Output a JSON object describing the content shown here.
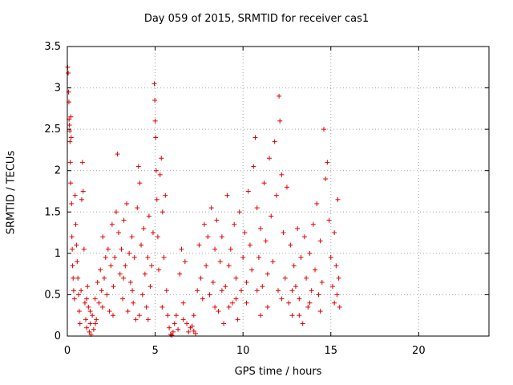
{
  "chart_data": {
    "type": "scatter",
    "title": "Day 059 of 2015, SRMTID for receiver cas1",
    "xlabel": "GPS time / hours",
    "ylabel": "SRMTID / TECUs",
    "xlim": [
      0,
      24
    ],
    "ylim": [
      0,
      3.5
    ],
    "xticks": [
      0,
      5,
      10,
      15,
      20
    ],
    "yticks": [
      0,
      0.5,
      1,
      1.5,
      2,
      2.5,
      3,
      3.5
    ],
    "grid": true,
    "marker": "+",
    "color": "#e00000",
    "series": [
      {
        "points": [
          [
            0.02,
            3.25
          ],
          [
            0.05,
            3.18
          ],
          [
            0.07,
            2.95
          ],
          [
            0.09,
            2.83
          ],
          [
            0.1,
            2.62
          ],
          [
            0.12,
            2.55
          ],
          [
            0.14,
            2.48
          ],
          [
            0.15,
            2.35
          ],
          [
            0.17,
            2.1
          ],
          [
            0.19,
            1.85
          ],
          [
            0.2,
            2.65
          ],
          [
            0.22,
            2.4
          ],
          [
            0.24,
            1.6
          ],
          [
            0.26,
            1.2
          ],
          [
            0.28,
            1.05
          ],
          [
            0.3,
            0.85
          ],
          [
            0.33,
            0.7
          ],
          [
            0.36,
            0.55
          ],
          [
            0.4,
            0.45
          ],
          [
            0.44,
            1.7
          ],
          [
            0.48,
            1.35
          ],
          [
            0.52,
            1.1
          ],
          [
            0.56,
            0.9
          ],
          [
            0.6,
            0.7
          ],
          [
            0.64,
            0.5
          ],
          [
            0.68,
            0.3
          ],
          [
            0.72,
            0.15
          ],
          [
            0.78,
            0.55
          ],
          [
            0.82,
            1.65
          ],
          [
            0.86,
            2.1
          ],
          [
            0.9,
            1.75
          ],
          [
            0.95,
            1.05
          ],
          [
            1.0,
            0.4
          ],
          [
            1.05,
            0.2
          ],
          [
            1.1,
            0.1
          ],
          [
            1.15,
            0.6
          ],
          [
            1.2,
            0.35
          ],
          [
            1.25,
            0.05
          ],
          [
            1.3,
            0.15
          ],
          [
            1.35,
            0.02
          ],
          [
            1.42,
            0.25
          ],
          [
            1.5,
            0.08
          ],
          [
            1.58,
            0.45
          ],
          [
            1.65,
            0.2
          ],
          [
            1.72,
            0.65
          ],
          [
            1.8,
            0.4
          ],
          [
            1.88,
            0.8
          ],
          [
            1.95,
            0.55
          ],
          [
            2.02,
            1.2
          ],
          [
            2.1,
            0.7
          ],
          [
            2.18,
            0.95
          ],
          [
            2.25,
            0.5
          ],
          [
            2.32,
            1.05
          ],
          [
            2.4,
            0.3
          ],
          [
            2.48,
            0.85
          ],
          [
            2.55,
            1.35
          ],
          [
            2.62,
            0.6
          ],
          [
            2.7,
            0.95
          ],
          [
            2.78,
            1.5
          ],
          [
            2.85,
            2.2
          ],
          [
            2.92,
            1.25
          ],
          [
            3.0,
            0.75
          ],
          [
            3.08,
            1.05
          ],
          [
            3.15,
            0.45
          ],
          [
            3.22,
            1.4
          ],
          [
            3.3,
            0.85
          ],
          [
            3.38,
            1.6
          ],
          [
            3.45,
            0.3
          ],
          [
            3.52,
            1.0
          ],
          [
            3.6,
            0.65
          ],
          [
            3.68,
            1.2
          ],
          [
            3.75,
            0.4
          ],
          [
            3.82,
            0.95
          ],
          [
            3.9,
            0.2
          ],
          [
            3.98,
            1.55
          ],
          [
            4.05,
            2.05
          ],
          [
            4.12,
            1.85
          ],
          [
            4.2,
            1.1
          ],
          [
            4.28,
            0.5
          ],
          [
            4.35,
            1.3
          ],
          [
            4.42,
            0.75
          ],
          [
            4.5,
            0.35
          ],
          [
            4.58,
            0.95
          ],
          [
            4.65,
            1.45
          ],
          [
            4.72,
            0.6
          ],
          [
            4.8,
            0.85
          ],
          [
            4.88,
            1.25
          ],
          [
            4.95,
            3.05
          ],
          [
            4.98,
            2.85
          ],
          [
            5.0,
            2.6
          ],
          [
            5.03,
            2.4
          ],
          [
            5.06,
            2.0
          ],
          [
            5.1,
            1.65
          ],
          [
            5.15,
            1.2
          ],
          [
            5.2,
            0.8
          ],
          [
            5.28,
            1.95
          ],
          [
            5.35,
            2.15
          ],
          [
            5.42,
            1.5
          ],
          [
            5.5,
            0.95
          ],
          [
            5.58,
            1.7
          ],
          [
            5.65,
            0.55
          ],
          [
            5.72,
            0.25
          ],
          [
            5.8,
            0.1
          ],
          [
            5.88,
            0.02
          ],
          [
            5.95,
            0.01
          ],
          [
            6.02,
            0.05
          ],
          [
            6.1,
            0.15
          ],
          [
            6.2,
            0.25
          ],
          [
            6.3,
            0.08
          ],
          [
            6.4,
            0.75
          ],
          [
            6.5,
            1.05
          ],
          [
            6.6,
            0.4
          ],
          [
            6.7,
            0.9
          ],
          [
            6.8,
            0.15
          ],
          [
            6.9,
            0.05
          ],
          [
            7.0,
            0.1
          ],
          [
            7.1,
            0.12
          ],
          [
            7.2,
            0.06
          ],
          [
            7.3,
            0.03
          ],
          [
            7.4,
            0.55
          ],
          [
            7.5,
            1.1
          ],
          [
            7.6,
            0.7
          ],
          [
            7.7,
            0.45
          ],
          [
            7.8,
            1.35
          ],
          [
            7.9,
            0.85
          ],
          [
            8.0,
            1.2
          ],
          [
            8.1,
            0.5
          ],
          [
            8.2,
            1.55
          ],
          [
            8.3,
            0.65
          ],
          [
            8.4,
            1.05
          ],
          [
            8.5,
            1.4
          ],
          [
            8.6,
            0.3
          ],
          [
            8.7,
            0.9
          ],
          [
            8.8,
            1.2
          ],
          [
            8.9,
            0.15
          ],
          [
            9.0,
            0.6
          ],
          [
            9.1,
            1.7
          ],
          [
            9.2,
            0.85
          ],
          [
            9.3,
            1.05
          ],
          [
            9.4,
            0.4
          ],
          [
            9.5,
            1.35
          ],
          [
            9.6,
            0.7
          ],
          [
            9.7,
            0.2
          ],
          [
            9.8,
            1.5
          ],
          [
            9.9,
            0.55
          ],
          [
            10.0,
            0.95
          ],
          [
            10.1,
            1.25
          ],
          [
            10.2,
            0.65
          ],
          [
            10.3,
            1.75
          ],
          [
            10.4,
            1.1
          ],
          [
            10.5,
            0.8
          ],
          [
            10.6,
            2.05
          ],
          [
            10.7,
            2.4
          ],
          [
            10.8,
            1.55
          ],
          [
            10.9,
            0.95
          ],
          [
            11.0,
            1.3
          ],
          [
            11.1,
            0.6
          ],
          [
            11.2,
            1.85
          ],
          [
            11.3,
            1.15
          ],
          [
            11.4,
            0.75
          ],
          [
            11.5,
            2.15
          ],
          [
            11.6,
            1.45
          ],
          [
            11.7,
            0.9
          ],
          [
            11.8,
            2.35
          ],
          [
            11.9,
            1.7
          ],
          [
            12.0,
            0.55
          ],
          [
            12.05,
            2.9
          ],
          [
            12.1,
            2.6
          ],
          [
            12.2,
            1.95
          ],
          [
            12.3,
            1.25
          ],
          [
            12.4,
            0.7
          ],
          [
            12.5,
            1.8
          ],
          [
            12.6,
            0.4
          ],
          [
            12.7,
            1.1
          ],
          [
            12.8,
            0.25
          ],
          [
            12.9,
            0.85
          ],
          [
            13.0,
            0.6
          ],
          [
            13.1,
            1.3
          ],
          [
            13.2,
            0.45
          ],
          [
            13.3,
            0.95
          ],
          [
            13.4,
            0.15
          ],
          [
            13.5,
            1.2
          ],
          [
            13.6,
            0.7
          ],
          [
            13.7,
            0.35
          ],
          [
            13.8,
            1.0
          ],
          [
            13.9,
            0.55
          ],
          [
            14.0,
            1.35
          ],
          [
            14.1,
            0.8
          ],
          [
            14.2,
            1.6
          ],
          [
            14.3,
            0.5
          ],
          [
            14.4,
            1.15
          ],
          [
            14.5,
            0.65
          ],
          [
            14.6,
            2.5
          ],
          [
            14.7,
            1.9
          ],
          [
            14.8,
            2.1
          ],
          [
            14.9,
            1.4
          ],
          [
            15.0,
            0.95
          ],
          [
            15.1,
            0.6
          ],
          [
            15.2,
            1.25
          ],
          [
            15.3,
            0.85
          ],
          [
            15.35,
            0.5
          ],
          [
            15.4,
            1.65
          ],
          [
            15.45,
            0.7
          ],
          [
            15.5,
            0.35
          ],
          [
            1.1,
            0.45
          ],
          [
            1.3,
            0.3
          ],
          [
            1.6,
            0.15
          ],
          [
            2.0,
            0.35
          ],
          [
            2.6,
            0.25
          ],
          [
            3.2,
            0.7
          ],
          [
            3.7,
            0.55
          ],
          [
            4.1,
            0.25
          ],
          [
            4.6,
            0.2
          ],
          [
            5.4,
            0.35
          ],
          [
            6.6,
            0.2
          ],
          [
            7.2,
            0.25
          ],
          [
            8.4,
            0.35
          ],
          [
            8.8,
            0.55
          ],
          [
            9.2,
            0.35
          ],
          [
            9.6,
            0.45
          ],
          [
            10.2,
            0.4
          ],
          [
            10.8,
            0.55
          ],
          [
            11.4,
            0.35
          ],
          [
            12.2,
            0.45
          ],
          [
            12.8,
            0.55
          ],
          [
            13.2,
            0.25
          ],
          [
            13.8,
            0.4
          ],
          [
            14.4,
            0.3
          ],
          [
            15.2,
            0.4
          ],
          [
            11.0,
            0.25
          ]
        ]
      }
    ]
  }
}
